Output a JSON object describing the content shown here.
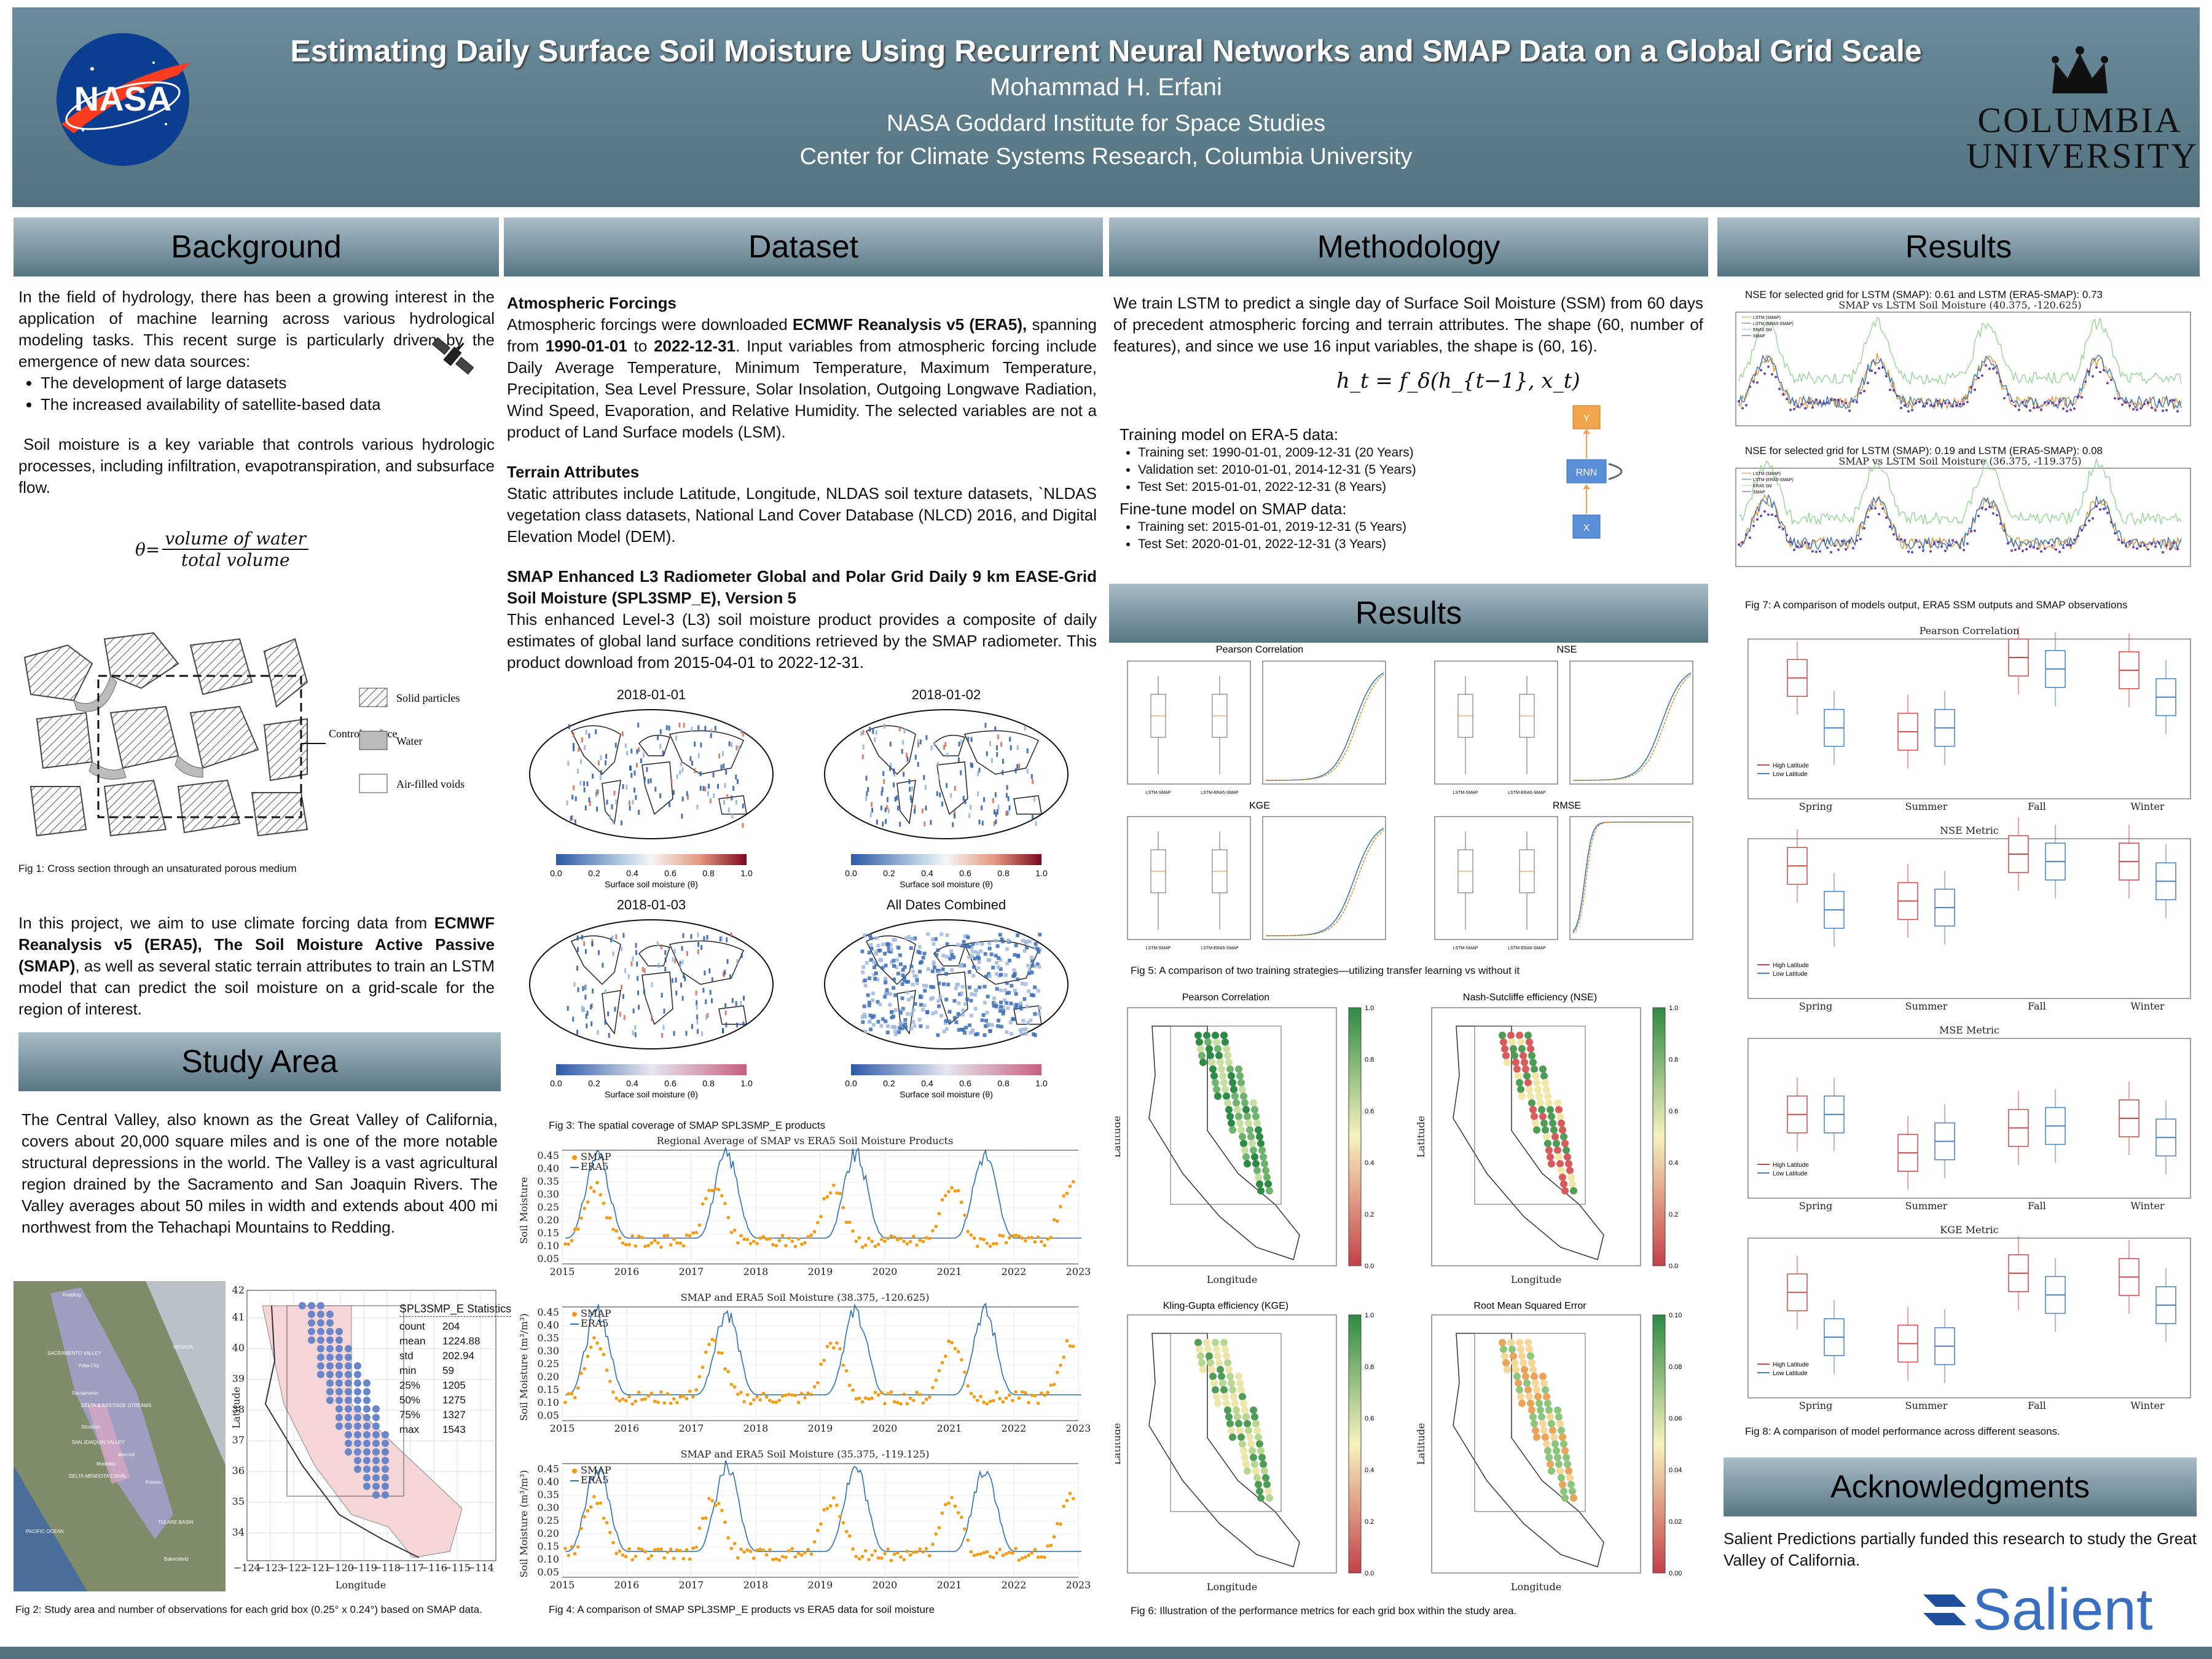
{
  "header": {
    "title": "Estimating Daily Surface Soil Moisture Using Recurrent Neural Networks and SMAP Data on a Global Grid Scale",
    "author": "Mohammad H. Erfani",
    "affiliation1": "NASA Goddard Institute for Space Studies",
    "affiliation2": "Center for Climate Systems Research, Columbia University",
    "logo_left": "NASA",
    "logo_right_line1": "COLUMBIA",
    "logo_right_line2": "UNIVERSITY"
  },
  "sections": {
    "background": "Background",
    "dataset": "Dataset",
    "methodology": "Methodology",
    "results_main": "Results",
    "results_right": "Results",
    "study_area": "Study Area",
    "acknowledgments": "Acknowledgments"
  },
  "background": {
    "p1": "In the field of hydrology, there has been a growing interest in the application of machine learning across various hydrological modeling tasks. This recent surge is particularly driven by the emergence of new data sources:",
    "bullets": [
      "The development of large datasets",
      "The increased availability of satellite-based data"
    ],
    "p2": "Soil moisture is a key variable that controls various hydrologic processes, including infiltration, evapotranspiration, and subsurface flow.",
    "eq_lhs": "θ=",
    "eq_num": "volume of water",
    "eq_den": "total volume",
    "legend": [
      "Solid particles",
      "Water",
      "Air-filled voids"
    ],
    "control_surface": "Control surface",
    "fig1": "Fig 1: Cross section through an unsaturated porous medium",
    "p3_a": "In this project, we aim to use climate forcing data from ",
    "p3_b": "ECMWF Reanalysis v5 (ERA5), The Soil Moisture Active Passive (SMAP)",
    "p3_c": ", as well as several static terrain attributes to train an LSTM model that can predict the soil moisture on a grid-scale for the region of interest."
  },
  "study": {
    "p1": "The Central Valley, also known as the Great Valley of California, covers about 20,000 square miles and is one of the more notable structural depressions in the world. The Valley is a vast agricultural region drained by the Sacramento and San Joaquin Rivers. The Valley averages about 50 miles in width and extends about 400 mi northwest from the Tehachapi Mountains to Redding.",
    "stats_title": "SPL3SMP_E Statistics",
    "stats": [
      [
        "count",
        "204"
      ],
      [
        "mean",
        "1224.88"
      ],
      [
        "std",
        "202.94"
      ],
      [
        "min",
        "59"
      ],
      [
        "25%",
        "1205"
      ],
      [
        "50%",
        "1275"
      ],
      [
        "75%",
        "1327"
      ],
      [
        "max",
        "1543"
      ]
    ],
    "map_labels": [
      "Redding",
      "SACRAMENTO VALLEY",
      "Yuba City",
      "Sacramento",
      "DELTA & EASTSIDE STREAMS",
      "Stockton",
      "SAN JOAQUIN VALLEY",
      "Merced",
      "Modesto",
      "Fresno",
      "DELTA MENDOTA CANAL",
      "TULARE BASIN",
      "Bakersfield",
      "PACIFIC OCEAN",
      "NEVADA"
    ],
    "lat_label": "Latitude",
    "lon_label": "Longitude",
    "lon_ticks": [
      "−124",
      "−123",
      "−122",
      "−121",
      "−120",
      "−119",
      "−118",
      "−117",
      "−116",
      "−115",
      "−114"
    ],
    "lat_ticks": [
      "42",
      "41",
      "40",
      "39",
      "38",
      "37",
      "36",
      "35",
      "34"
    ],
    "fig2": "Fig 2: Study area and number of observations for each grid box (0.25° x 0.24°) based on SMAP data."
  },
  "dataset": {
    "h1": "Atmospheric Forcings",
    "p1_a": "Atmospheric forcings were downloaded ",
    "p1_b": "ECMWF Reanalysis v5 (ERA5),",
    "p1_c": " spanning from ",
    "p1_d": "1990-01-01",
    "p1_e": " to ",
    "p1_f": "2022-12-31",
    "p1_g": ". Input variables from atmospheric forcing include Daily Average Temperature, Minimum Temperature, Maximum Temperature, Precipitation, Sea Level Pressure, Solar Insolation, Outgoing Longwave Radiation, Wind Speed, Evaporation, and Relative Humidity. The selected variables are not a product of Land Surface models (LSM).",
    "h2": "Terrain Attributes",
    "p2": "Static attributes include Latitude, Longitude, NLDAS soil texture datasets, `NLDAS vegetation class datasets, National Land Cover Database (NLCD) 2016, and Digital Elevation Model (DEM).",
    "h3": "SMAP Enhanced L3 Radiometer Global and Polar Grid Daily 9 km EASE-Grid Soil Moisture (SPL3SMP_E), Version 5",
    "p3": "This enhanced Level-3 (L3) soil moisture product provides a composite of daily estimates of global land surface conditions retrieved by the SMAP radiometer. This product download from 2015-04-01 to 2022-12-31.",
    "maps": [
      "2018-01-01",
      "2018-01-02",
      "2018-01-03",
      "All Dates Combined"
    ],
    "cbar_label": "Surface soil moisture (θ)",
    "cbar_ticks": [
      "0.0",
      "0.2",
      "0.4",
      "0.6",
      "0.8",
      "1.0"
    ],
    "fig3": "Fig 3: The spatial coverage of SMAP SPL3SMP_E products",
    "ts_titles": [
      "Regional Average of SMAP vs ERA5 Soil Moisture Products",
      "SMAP and ERA5 Soil Moisture (38.375, -120.625)",
      "SMAP and ERA5 Soil Moisture (35.375, -119.125)"
    ],
    "ts_legend": [
      "SMAP",
      "ERA5"
    ],
    "ts_ylabel": "Soil Moisture",
    "ts_ylabel2": "Soil Moisture (m³/m³)",
    "years": [
      "2015",
      "2016",
      "2017",
      "2018",
      "2019",
      "2020",
      "2021",
      "2022",
      "2023"
    ],
    "ts_yticks": [
      "0.05",
      "0.10",
      "0.15",
      "0.20",
      "0.25",
      "0.30",
      "0.35",
      "0.40",
      "0.45"
    ],
    "fig4": "Fig 4: A comparison of SMAP SPL3SMP_E products vs ERA5 data for soil moisture"
  },
  "methodology": {
    "p1": "We train LSTM to predict a single day of Surface Soil Moisture (SSM) from 60 days of precedent atmospheric forcing and terrain attributes. The shape (60, number of features), and since we use 16 input variables, the shape is (60, 16).",
    "equation": "h_t = f_δ(h_{t−1}, x_t)",
    "rnn_y": "Y",
    "rnn_mid": "RNN",
    "rnn_x": "X",
    "train_h": "Training model on ERA-5 data:",
    "train": [
      "Training set: 1990-01-01, 2009-12-31 (20 Years)",
      "Validation set: 2010-01-01, 2014-12-31 (5 Years)",
      "Test Set: 2015-01-01, 2022-12-31 (8 Years)"
    ],
    "fine_h": "Fine-tune model on SMAP data:",
    "fine": [
      "Training set: 2015-01-01, 2019-12-31 (5 Years)",
      "Test Set: 2020-01-01, 2022-12-31 (3 Years)"
    ]
  },
  "results_mid": {
    "panels": [
      "Pearson Correlation",
      "NSE",
      "KGE",
      "RMSE"
    ],
    "box_x": [
      "LSTM-SMAP",
      "LSTM-ERA5-SMAP"
    ],
    "fig5": "Fig 5: A comparison of two training strategies—utilizing transfer learning vs without it",
    "maps": [
      "Pearson Correlation",
      "Nash-Sutcliffe efficiency (NSE)",
      "Kling-Gupta efficiency (KGE)",
      "Root Mean Squared Error"
    ],
    "cbar_ticks": [
      "0.0",
      "0.2",
      "0.4",
      "0.6",
      "0.8",
      "1.0"
    ],
    "rmse_ticks": [
      "0.00",
      "0.02",
      "0.04",
      "0.06",
      "0.08",
      "0.10"
    ],
    "fig6": "Fig 6: Illustration of the performance metrics for each grid box within the study area."
  },
  "results_right": {
    "nse1": "NSE for selected grid for LSTM (SMAP): 0.61 and LSTM (ERA5-SMAP): 0.73",
    "nse2": "NSE for selected grid for LSTM (SMAP): 0.19 and LSTM (ERA5-SMAP): 0.08",
    "ts1_title": "SMAP vs LSTM Soil Moisture (40.375, -120.625)",
    "ts2_title": "SMAP vs LSTM Soil Moisture (36.375, -119.375)",
    "ts_legend": [
      "LSTM (SMAP)",
      "LSTM (ERA5-SMAP)",
      "ERA5 SM",
      "SMAP"
    ],
    "fig7": "Fig 7: A comparison of models output, ERA5 SSM outputs and SMAP observations",
    "season_titles": [
      "Pearson Correlation",
      "NSE Metric",
      "MSE Metric",
      "KGE Metric"
    ],
    "seasons": [
      "Spring",
      "Summer",
      "Fall",
      "Winter"
    ],
    "season_legend": [
      "High Latitude",
      "Low Latitude"
    ],
    "fig8": "Fig 8: A comparison of model performance across different seasons."
  },
  "ack": {
    "text": "Salient Predictions partially funded this research to study the Great Valley of California.",
    "logo": "Salient"
  },
  "chart_data": [
    {
      "type": "box",
      "title": "Pearson Correlation",
      "categories": [
        "Spring",
        "Summer",
        "Fall",
        "Winter"
      ],
      "series": [
        {
          "name": "High Latitude",
          "median": [
            0.72,
            0.3,
            0.88,
            0.78
          ]
        },
        {
          "name": "Low Latitude",
          "median": [
            0.33,
            0.33,
            0.79,
            0.57
          ]
        }
      ],
      "ylim": [
        -0.2,
        1.0
      ]
    },
    {
      "type": "box",
      "title": "NSE Metric",
      "categories": [
        "Spring",
        "Summer",
        "Fall",
        "Winter"
      ],
      "series": [
        {
          "name": "High Latitude",
          "median": [
            0.45,
            -0.35,
            0.72,
            0.55
          ]
        },
        {
          "name": "Low Latitude",
          "median": [
            -0.55,
            -0.5,
            0.55,
            0.1
          ]
        }
      ],
      "ylim": [
        -2.5,
        1.0
      ]
    },
    {
      "type": "box",
      "title": "MSE Metric",
      "categories": [
        "Spring",
        "Summer",
        "Fall",
        "Winter"
      ],
      "series": [
        {
          "name": "High Latitude",
          "median": [
            0.042,
            0.022,
            0.035,
            0.04
          ]
        },
        {
          "name": "Low Latitude",
          "median": [
            0.042,
            0.028,
            0.036,
            0.03
          ]
        }
      ],
      "ylim": [
        0.0,
        0.08
      ]
    },
    {
      "type": "box",
      "title": "KGE Metric",
      "categories": [
        "Spring",
        "Summer",
        "Fall",
        "Winter"
      ],
      "series": [
        {
          "name": "High Latitude",
          "median": [
            0.6,
            0.2,
            0.75,
            0.72
          ]
        },
        {
          "name": "Low Latitude",
          "median": [
            0.25,
            0.18,
            0.58,
            0.5
          ]
        }
      ],
      "ylim": [
        -0.2,
        1.0
      ]
    }
  ],
  "colors": {
    "header": "#54727f",
    "high": "#d1484a",
    "low": "#4a7fc1",
    "smap": "#f39c12",
    "era5": "#2e6db0",
    "salient": "#1f4e9c"
  }
}
